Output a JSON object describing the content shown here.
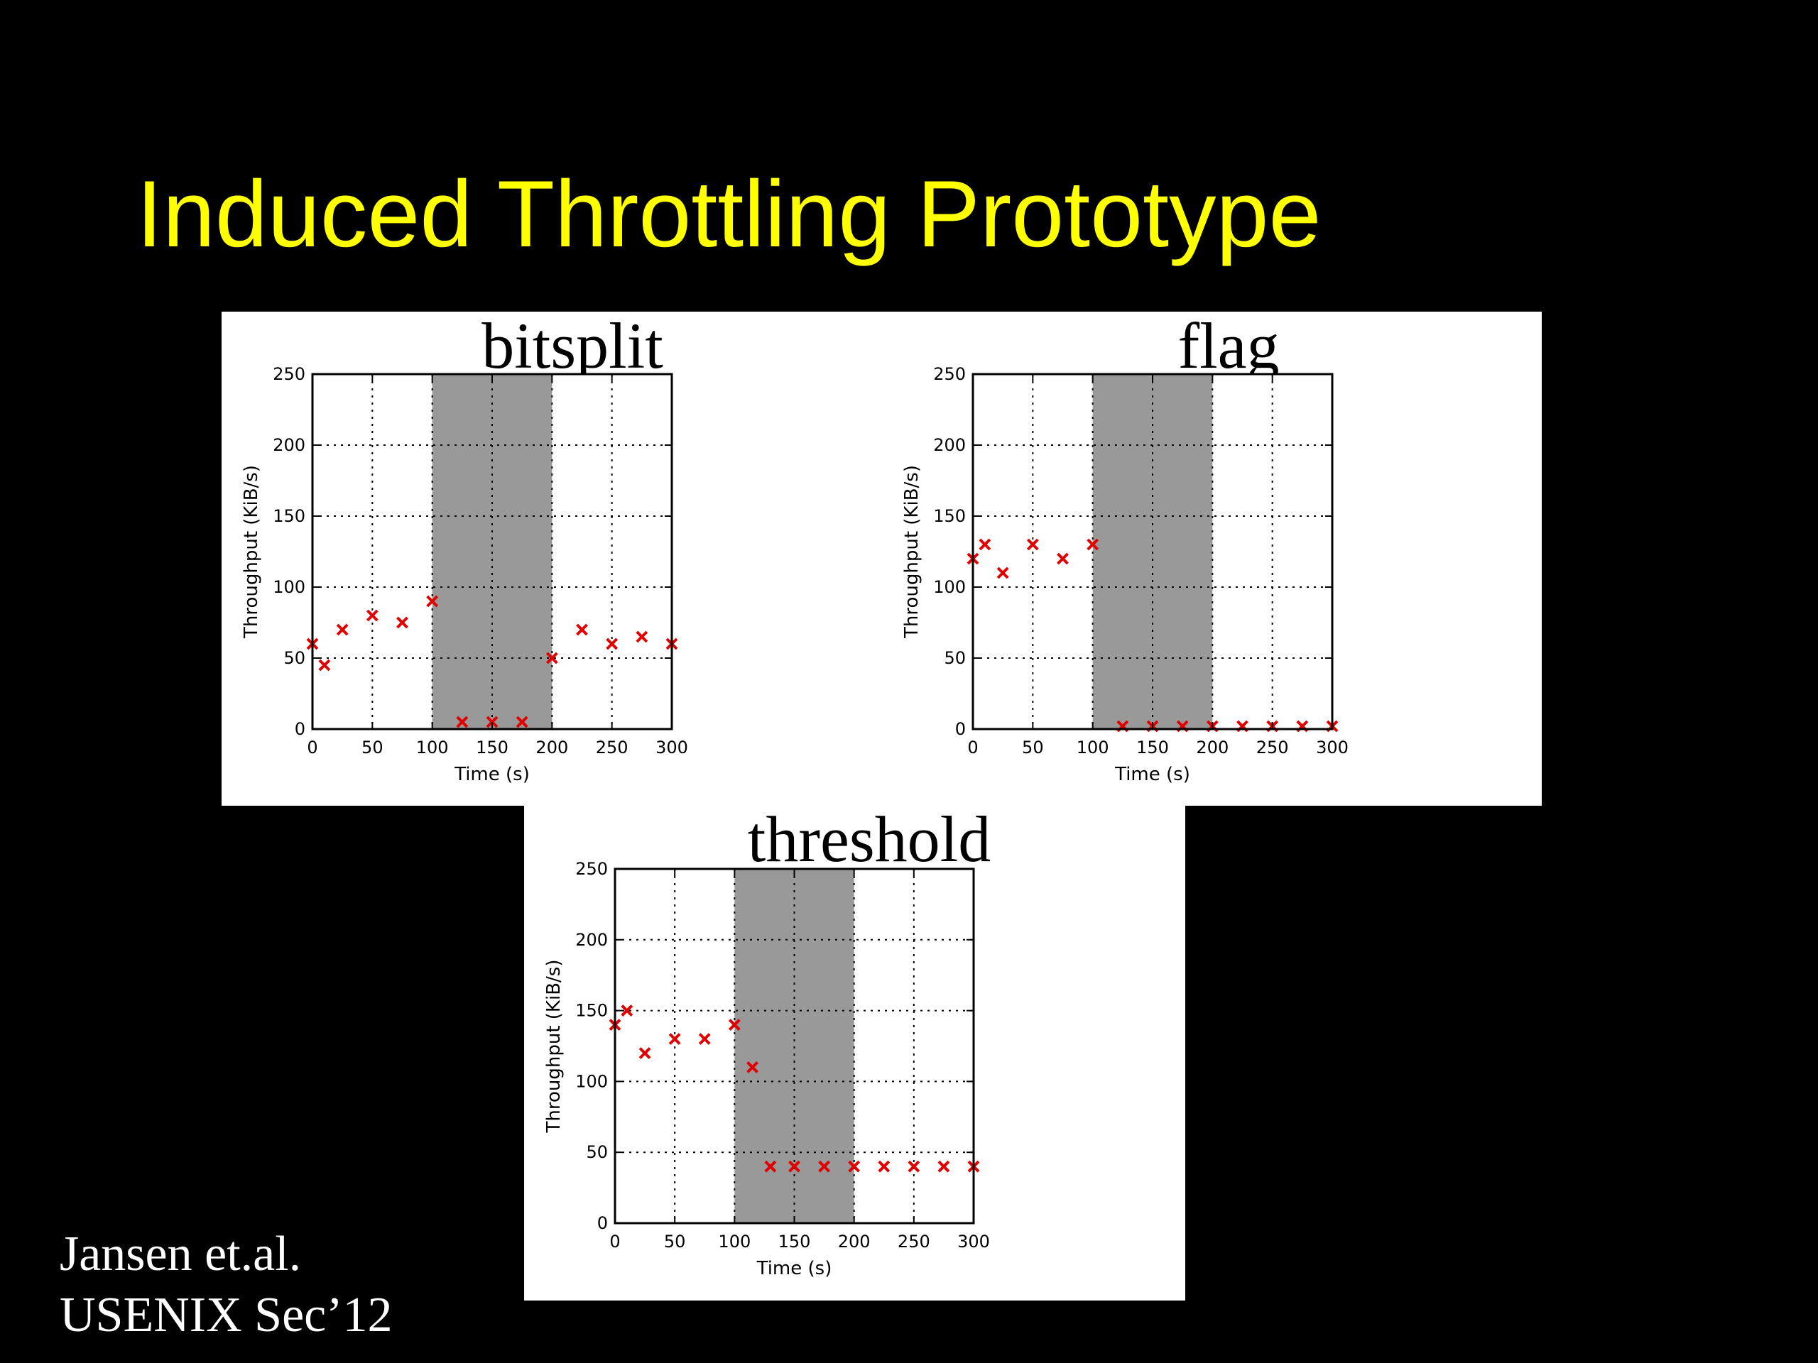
{
  "slide": {
    "title": "Induced Throttling Prototype",
    "citation_line1": "Jansen et.al.",
    "citation_line2": "USENIX Sec’12",
    "background_color": "#000000",
    "title_color": "#ffff00"
  },
  "chart_data": [
    {
      "type": "scatter",
      "title": "bitsplit",
      "xlabel": "Time (s)",
      "ylabel": "Throughput (KiB/s)",
      "xlim": [
        0,
        300
      ],
      "ylim": [
        0,
        250
      ],
      "xticks": [
        0,
        50,
        100,
        150,
        200,
        250,
        300
      ],
      "yticks": [
        0,
        50,
        100,
        150,
        200,
        250
      ],
      "grid": true,
      "marker": "x",
      "marker_color": "#e00000",
      "shaded_region": {
        "x": [
          100,
          200
        ],
        "color": "#999999"
      },
      "series": [
        {
          "x": [
            0,
            10,
            25,
            50,
            75,
            100,
            125,
            150,
            175,
            200,
            225,
            250,
            275,
            300
          ],
          "y": [
            60,
            45,
            70,
            80,
            75,
            90,
            5,
            5,
            5,
            50,
            70,
            60,
            65,
            60
          ]
        }
      ]
    },
    {
      "type": "scatter",
      "title": "flag",
      "xlabel": "Time (s)",
      "ylabel": "Throughput (KiB/s)",
      "xlim": [
        0,
        300
      ],
      "ylim": [
        0,
        250
      ],
      "xticks": [
        0,
        50,
        100,
        150,
        200,
        250,
        300
      ],
      "yticks": [
        0,
        50,
        100,
        150,
        200,
        250
      ],
      "grid": true,
      "marker": "x",
      "marker_color": "#e00000",
      "shaded_region": {
        "x": [
          100,
          200
        ],
        "color": "#999999"
      },
      "series": [
        {
          "x": [
            0,
            10,
            25,
            50,
            75,
            100,
            125,
            150,
            175,
            200,
            225,
            250,
            275,
            300
          ],
          "y": [
            120,
            130,
            110,
            130,
            120,
            130,
            2,
            2,
            2,
            2,
            2,
            2,
            2,
            2
          ]
        }
      ]
    },
    {
      "type": "scatter",
      "title": "threshold",
      "xlabel": "Time (s)",
      "ylabel": "Throughput (KiB/s)",
      "xlim": [
        0,
        300
      ],
      "ylim": [
        0,
        250
      ],
      "xticks": [
        0,
        50,
        100,
        150,
        200,
        250,
        300
      ],
      "yticks": [
        0,
        50,
        100,
        150,
        200,
        250
      ],
      "grid": true,
      "marker": "x",
      "marker_color": "#e00000",
      "shaded_region": {
        "x": [
          100,
          200
        ],
        "color": "#999999"
      },
      "series": [
        {
          "x": [
            0,
            10,
            25,
            50,
            75,
            100,
            115,
            130,
            150,
            175,
            200,
            225,
            250,
            275,
            300
          ],
          "y": [
            140,
            150,
            120,
            130,
            130,
            140,
            110,
            40,
            40,
            40,
            40,
            40,
            40,
            40,
            40
          ]
        }
      ]
    }
  ]
}
